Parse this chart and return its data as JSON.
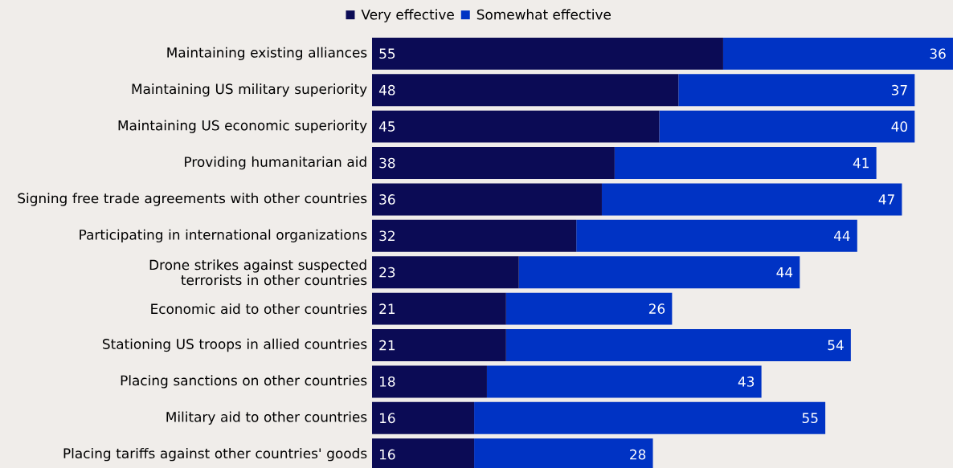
{
  "chart_data": {
    "type": "bar",
    "orientation": "horizontal",
    "stacked": true,
    "data_labels": true,
    "legend": "top",
    "categories": [
      "Maintaining existing alliances",
      "Maintaining US military superiority",
      "Maintaining US economic superiority",
      "Providing humanitarian aid",
      "Signing free trade agreements with other countries",
      "Participating in international organizations",
      "Drone strikes against suspected terrorists in other countries",
      "Economic aid to other countries",
      "Stationing US troops in allied countries",
      "Placing sanctions on other countries",
      "Military aid to other countries",
      "Placing tariffs against other countries' goods"
    ],
    "series": [
      {
        "name": "Very effective",
        "color": "#0b0b55",
        "values": [
          55,
          48,
          45,
          38,
          36,
          32,
          23,
          21,
          21,
          18,
          16,
          16
        ]
      },
      {
        "name": "Somewhat effective",
        "color": "#0033c4",
        "values": [
          36,
          37,
          40,
          41,
          47,
          44,
          44,
          26,
          54,
          43,
          55,
          28
        ]
      }
    ]
  }
}
